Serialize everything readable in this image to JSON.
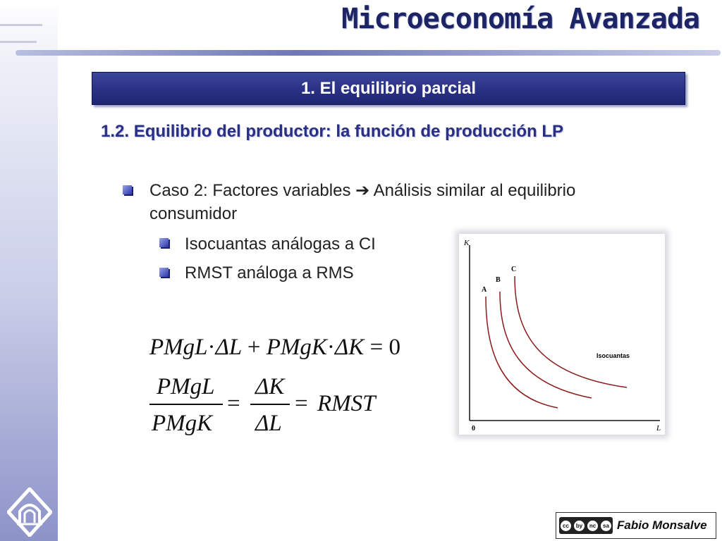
{
  "header": {
    "title": "Microeconomía Avanzada"
  },
  "section": {
    "title": "1. El equilibrio parcial"
  },
  "subtitle": "1.2. Equilibrio del productor: la función de producción LP",
  "bullets": [
    {
      "text_line1": "Caso 2: Factores variables ➔ Análisis similar al equilibrio",
      "text_line2": "consumidor"
    }
  ],
  "subbullets": [
    {
      "text": "Isocuantas análogas a CI"
    },
    {
      "text": "RMST análoga a RMS"
    }
  ],
  "formula": {
    "line1": {
      "t1": "PMgL",
      "dot1": "·",
      "d1": "ΔL",
      "plus": "+",
      "t2": "PMgK",
      "dot2": "·",
      "d2": "ΔK",
      "eq": "=",
      "zero": "0"
    },
    "frac1": {
      "num": "PMgL",
      "den": "PMgK"
    },
    "eq1": "=",
    "frac2": {
      "num": "ΔK",
      "den": "ΔL"
    },
    "eq2": "=",
    "rhs": "RMST"
  },
  "figure": {
    "y_axis_label": "K",
    "x_axis_label": "L",
    "origin_label": "0",
    "curve_labels": [
      "A",
      "B",
      "C"
    ],
    "annotation": "Isocuantas",
    "curve_color": "#8b1a1a"
  },
  "footer": {
    "author": "Fabio Monsalve",
    "license_icons": [
      "cc",
      "by",
      "nc",
      "sa"
    ]
  }
}
